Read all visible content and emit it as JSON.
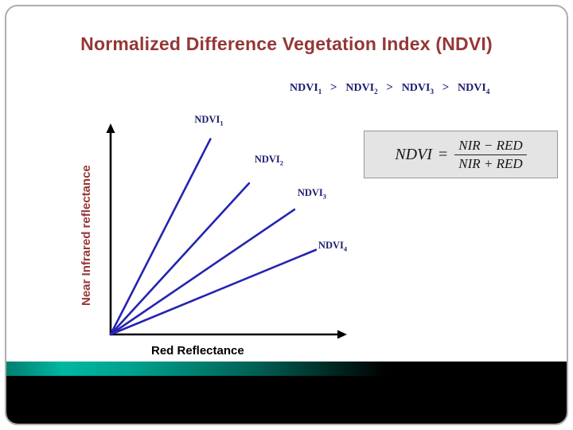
{
  "slide": {
    "title": "Normalized Difference Vegetation Index (NDVI)",
    "colors": {
      "title": "#953735",
      "navy": "#1c1c70",
      "line_blue": "#2424b0",
      "axis": "#000000",
      "teal": "#00b7a2"
    }
  },
  "inequality": {
    "terms": [
      {
        "base": "NDVI",
        "sub": "1"
      },
      {
        "base": "NDVI",
        "sub": "2"
      },
      {
        "base": "NDVI",
        "sub": "3"
      },
      {
        "base": "NDVI",
        "sub": "4"
      }
    ],
    "separator": ">"
  },
  "chart_data": {
    "type": "line",
    "title": "",
    "xlabel": "Red Reflectance",
    "ylabel": "Near Infrared reflectance",
    "xlim": [
      0,
      1
    ],
    "ylim": [
      0,
      1
    ],
    "grid": false,
    "legend": "labels-at-line-ends",
    "axis_arrows": true,
    "description": "Four schematic lines radiating from the origin with decreasing slope; steeper slope corresponds to higher NDVI (NDVI1 > NDVI2 > NDVI3 > NDVI4).",
    "series": [
      {
        "name": "NDVI1",
        "label_base": "NDVI",
        "label_sub": "1",
        "x": [
          0,
          0.44
        ],
        "y": [
          0,
          0.97
        ],
        "label_dx": -20,
        "label_dy": -32
      },
      {
        "name": "NDVI2",
        "label_base": "NDVI",
        "label_sub": "2",
        "x": [
          0,
          0.61
        ],
        "y": [
          0,
          0.75
        ],
        "label_dx": 7,
        "label_dy": -37
      },
      {
        "name": "NDVI3",
        "label_base": "NDVI",
        "label_sub": "3",
        "x": [
          0,
          0.81
        ],
        "y": [
          0,
          0.62
        ],
        "label_dx": 4,
        "label_dy": -28
      },
      {
        "name": "NDVI4",
        "label_base": "NDVI",
        "label_sub": "4",
        "x": [
          0,
          0.905
        ],
        "y": [
          0,
          0.42
        ],
        "label_dx": 3,
        "label_dy": -13
      }
    ]
  },
  "formula": {
    "lhs": "NDVI",
    "equals": "=",
    "numerator": "NIR − RED",
    "denominator": "NIR + RED"
  }
}
